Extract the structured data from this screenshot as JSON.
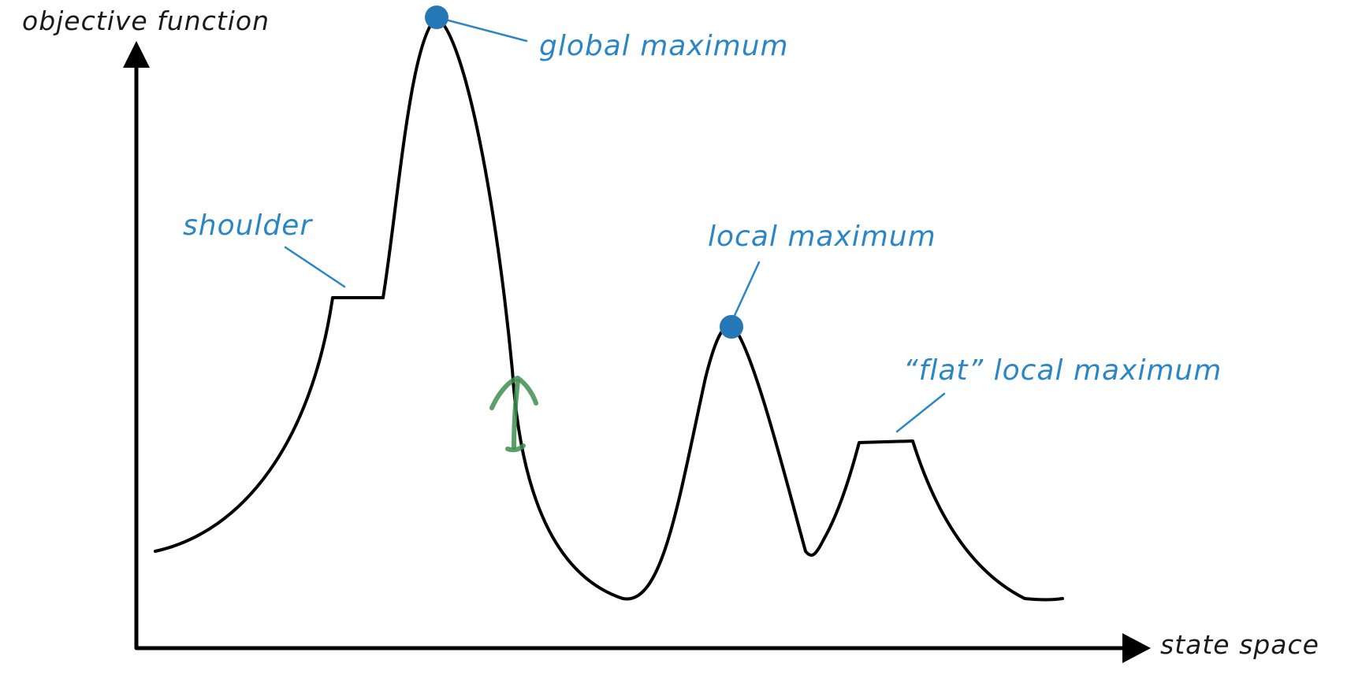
{
  "axes": {
    "y_label": "objective function",
    "x_label": "state space"
  },
  "annotations": {
    "global_maximum": "global maximum",
    "shoulder": "shoulder",
    "local_maximum": "local maximum",
    "flat_local_maximum": "“flat” local maximum"
  },
  "colors": {
    "curve": "#000000",
    "annotation": "#2b86c5",
    "marker": "#2478b5",
    "handwritten_mark": "#3f8f4f"
  }
}
